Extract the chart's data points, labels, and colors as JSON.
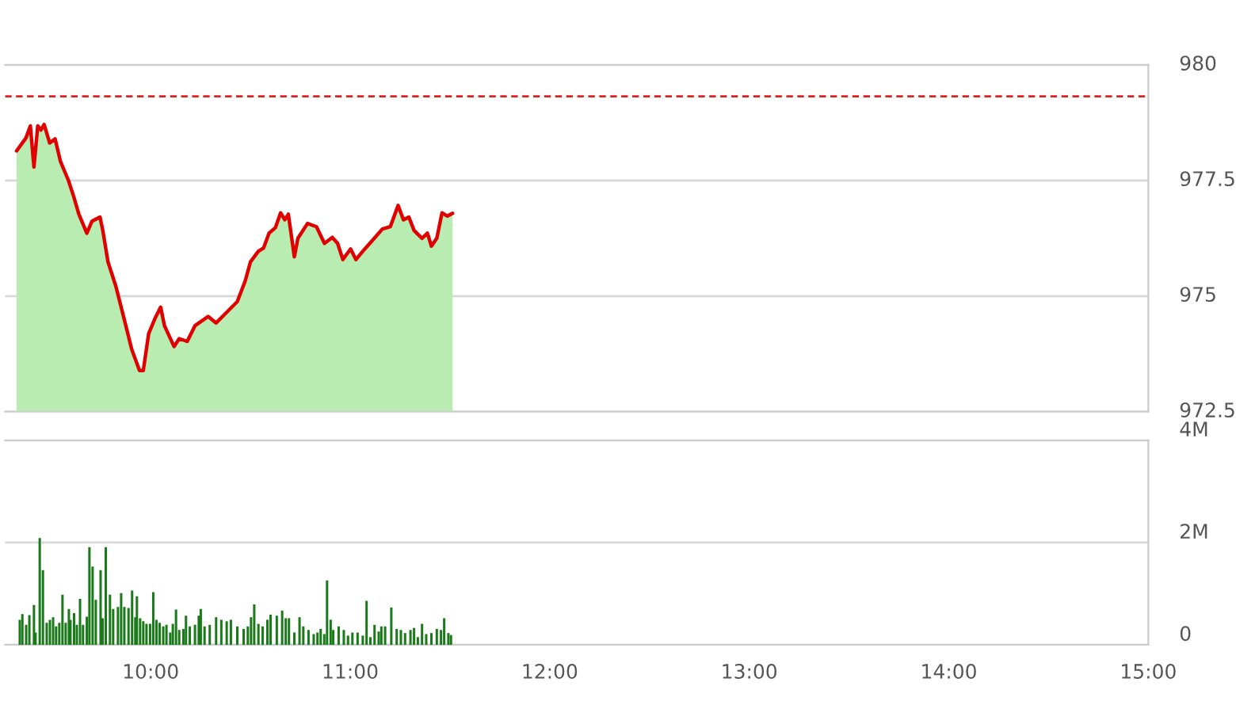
{
  "chart_data": [
    {
      "type": "area",
      "xlim": [
        9.27,
        15.0
      ],
      "ylim": [
        972.5,
        980
      ],
      "yticks": [
        972.5,
        975,
        977.5,
        980
      ],
      "grid": "y",
      "tick_labels": "y",
      "line_style": "solid",
      "series": [
        {
          "type": "area",
          "color": "#b8ecb0",
          "x": [
            9.328,
            9.375,
            9.397,
            9.415,
            9.434,
            9.45,
            9.466,
            9.494,
            9.521,
            9.548,
            9.587,
            9.613,
            9.64,
            9.68,
            9.706,
            9.746,
            9.76,
            9.786,
            9.825,
            9.865,
            9.905,
            9.944,
            9.963,
            9.99,
            10.024,
            10.05,
            10.069,
            10.117,
            10.143,
            10.183,
            10.222,
            10.262,
            10.288,
            10.328,
            10.381,
            10.434,
            10.474,
            10.5,
            10.54,
            10.566,
            10.593,
            10.625,
            10.651,
            10.672,
            10.69,
            10.72,
            10.738,
            10.786,
            10.831,
            10.871,
            10.91,
            10.937,
            10.963,
            11.002,
            11.029,
            11.069,
            11.121,
            11.161,
            11.201,
            11.24,
            11.267,
            11.294,
            11.32,
            11.36,
            11.387,
            11.407,
            11.434,
            11.46,
            11.487,
            11.513
          ],
          "values": [
            978.14,
            978.42,
            978.68,
            977.79,
            978.68,
            978.59,
            978.71,
            978.31,
            978.4,
            977.91,
            977.51,
            977.17,
            976.77,
            976.36,
            976.62,
            976.71,
            976.42,
            975.74,
            975.22,
            974.54,
            973.85,
            973.39,
            973.39,
            974.19,
            974.54,
            974.76,
            974.36,
            973.91,
            974.08,
            974.02,
            974.36,
            974.48,
            974.56,
            974.42,
            974.65,
            974.88,
            975.33,
            975.74,
            975.97,
            976.04,
            976.36,
            976.48,
            976.8,
            976.65,
            976.77,
            975.85,
            976.25,
            976.57,
            976.5,
            976.14,
            976.27,
            976.14,
            975.79,
            976.02,
            975.79,
            976.0,
            976.25,
            976.45,
            976.5,
            976.96,
            976.65,
            976.71,
            976.42,
            976.25,
            976.36,
            976.08,
            976.25,
            976.8,
            976.73,
            976.79
          ]
        },
        {
          "type": "line",
          "color": "#e00000",
          "x": [
            9.328,
            9.375,
            9.397,
            9.415,
            9.434,
            9.45,
            9.466,
            9.494,
            9.521,
            9.548,
            9.587,
            9.613,
            9.64,
            9.68,
            9.706,
            9.746,
            9.76,
            9.786,
            9.825,
            9.865,
            9.905,
            9.944,
            9.963,
            9.99,
            10.024,
            10.05,
            10.069,
            10.117,
            10.143,
            10.183,
            10.222,
            10.262,
            10.288,
            10.328,
            10.381,
            10.434,
            10.474,
            10.5,
            10.54,
            10.566,
            10.593,
            10.625,
            10.651,
            10.672,
            10.69,
            10.72,
            10.738,
            10.786,
            10.831,
            10.871,
            10.91,
            10.937,
            10.963,
            11.002,
            11.029,
            11.069,
            11.121,
            11.161,
            11.201,
            11.24,
            11.267,
            11.294,
            11.32,
            11.36,
            11.387,
            11.407,
            11.434,
            11.46,
            11.487,
            11.513
          ],
          "values": [
            978.14,
            978.42,
            978.68,
            977.79,
            978.68,
            978.59,
            978.71,
            978.31,
            978.4,
            977.91,
            977.51,
            977.17,
            976.77,
            976.36,
            976.62,
            976.71,
            976.42,
            975.74,
            975.22,
            974.54,
            973.85,
            973.39,
            973.39,
            974.19,
            974.54,
            974.76,
            974.36,
            973.91,
            974.08,
            974.02,
            974.36,
            974.48,
            974.56,
            974.42,
            974.65,
            974.88,
            975.33,
            975.74,
            975.97,
            976.04,
            976.36,
            976.48,
            976.8,
            976.65,
            976.77,
            975.85,
            976.25,
            976.57,
            976.5,
            976.14,
            976.27,
            976.14,
            975.79,
            976.02,
            975.79,
            976.0,
            976.25,
            976.45,
            976.5,
            976.96,
            976.65,
            976.71,
            976.42,
            976.25,
            976.36,
            976.08,
            976.25,
            976.8,
            976.73,
            976.79
          ]
        }
      ],
      "ref_lines": [
        {
          "axis": "y",
          "value": 979.32,
          "color": "#e02020",
          "line_style": "dashed"
        }
      ]
    },
    {
      "type": "bar",
      "xlim": [
        9.27,
        15.0
      ],
      "ylim": [
        0,
        4
      ],
      "yticks": [
        {
          "value": 0,
          "label": "0"
        },
        {
          "value": 2,
          "label": "2M"
        },
        {
          "value": 4,
          "label": "4M"
        }
      ],
      "xticks": [
        {
          "value": 10,
          "label": "10:00"
        },
        {
          "value": 11,
          "label": "11:00"
        },
        {
          "value": 12,
          "label": "12:00"
        },
        {
          "value": 13,
          "label": "13:00"
        },
        {
          "value": 14,
          "label": "14:00"
        },
        {
          "value": 15,
          "label": "15:00"
        }
      ],
      "grid": "y",
      "series": [
        {
          "color": "#1a7a1a",
          "x": [
            9.344,
            9.357,
            9.376,
            9.392,
            9.415,
            9.423,
            9.444,
            9.46,
            9.479,
            9.495,
            9.511,
            9.526,
            9.542,
            9.558,
            9.574,
            9.59,
            9.598,
            9.616,
            9.63,
            9.646,
            9.661,
            9.68,
            9.693,
            9.709,
            9.725,
            9.749,
            9.759,
            9.775,
            9.796,
            9.812,
            9.836,
            9.852,
            9.868,
            9.889,
            9.907,
            9.923,
            9.931,
            9.947,
            9.963,
            9.979,
            9.997,
            10.013,
            10.029,
            10.045,
            10.063,
            10.079,
            10.098,
            10.111,
            10.127,
            10.143,
            10.164,
            10.177,
            10.196,
            10.222,
            10.241,
            10.251,
            10.27,
            10.296,
            10.328,
            10.354,
            10.381,
            10.402,
            10.434,
            10.466,
            10.487,
            10.503,
            10.519,
            10.54,
            10.561,
            10.585,
            10.601,
            10.632,
            10.659,
            10.677,
            10.693,
            10.72,
            10.746,
            10.765,
            10.791,
            10.817,
            10.836,
            10.852,
            10.87,
            10.884,
            10.902,
            10.915,
            10.942,
            10.968,
            10.989,
            11.011,
            11.037,
            11.063,
            11.082,
            11.101,
            11.122,
            11.143,
            11.156,
            11.175,
            11.206,
            11.233,
            11.254,
            11.275,
            11.302,
            11.32,
            11.339,
            11.36,
            11.381,
            11.407,
            11.434,
            11.455,
            11.471,
            11.492,
            11.505
          ],
          "values": [
            0.49,
            0.6,
            0.39,
            0.58,
            0.78,
            0.24,
            2.09,
            1.46,
            0.43,
            0.49,
            0.54,
            0.36,
            0.43,
            0.98,
            0.43,
            0.7,
            0.49,
            0.62,
            0.39,
            0.9,
            0.39,
            0.55,
            1.91,
            1.53,
            0.88,
            1.46,
            0.52,
            1.91,
            0.98,
            0.7,
            0.74,
            1.01,
            0.74,
            0.72,
            1.06,
            0.54,
            0.95,
            0.52,
            0.46,
            0.41,
            0.41,
            1.03,
            0.49,
            0.43,
            0.36,
            0.39,
            0.24,
            0.41,
            0.69,
            0.29,
            0.31,
            0.57,
            0.36,
            0.39,
            0.57,
            0.7,
            0.36,
            0.39,
            0.54,
            0.49,
            0.46,
            0.49,
            0.36,
            0.31,
            0.36,
            0.54,
            0.79,
            0.41,
            0.36,
            0.49,
            0.59,
            0.57,
            0.67,
            0.52,
            0.52,
            0.24,
            0.54,
            0.36,
            0.29,
            0.21,
            0.24,
            0.31,
            0.21,
            1.26,
            0.49,
            0.29,
            0.36,
            0.29,
            0.18,
            0.24,
            0.24,
            0.18,
            0.86,
            0.15,
            0.39,
            0.26,
            0.36,
            0.36,
            0.73,
            0.31,
            0.29,
            0.23,
            0.29,
            0.33,
            0.15,
            0.41,
            0.21,
            0.23,
            0.31,
            0.29,
            0.52,
            0.23,
            0.19
          ]
        }
      ]
    }
  ]
}
